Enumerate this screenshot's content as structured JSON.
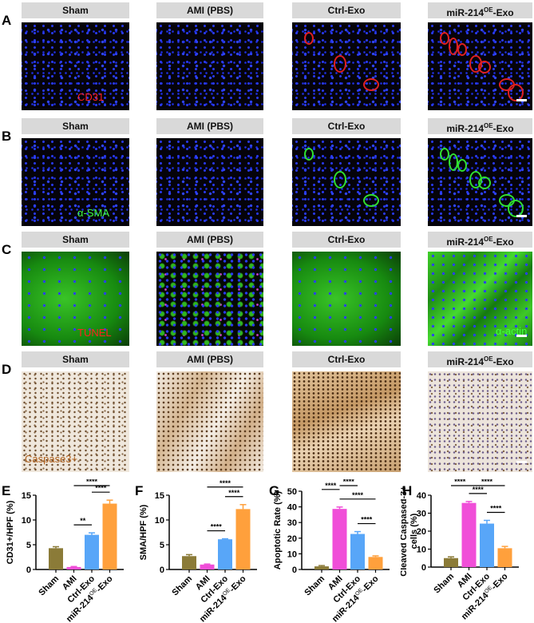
{
  "rows": [
    {
      "letter": "A",
      "label": "CD31",
      "label_color": "#ff2020",
      "style": [
        "fluo-blue",
        "fluo-blue",
        "fluo-blue",
        "fluo-blue"
      ]
    },
    {
      "letter": "B",
      "label": "α-SMA",
      "label_color": "#40ff40",
      "style": [
        "fluo-blue",
        "fluo-blue",
        "fluo-blue",
        "fluo-blue"
      ]
    },
    {
      "letter": "C",
      "label": "TUNEL",
      "label_color": "#ff2020",
      "label2": "α-actin",
      "label2_color": "#40ff40",
      "style": [
        "green-soft",
        "green-dark",
        "green-soft",
        "fluo-green"
      ]
    },
    {
      "letter": "D",
      "label": "Caspase3+",
      "label_color": "#b0601c",
      "style": [
        "ihc",
        "ihc-mid",
        "ihc-dark",
        "ihc-light"
      ]
    }
  ],
  "groups": [
    {
      "main": "Sham",
      "sup": "",
      "suffix": ""
    },
    {
      "main": "AMI (PBS)",
      "sup": "",
      "suffix": ""
    },
    {
      "main": "Ctrl-Exo",
      "sup": "",
      "suffix": ""
    },
    {
      "main": "miR-214",
      "sup": "OE",
      "suffix": "-Exo"
    }
  ],
  "chart_data": [
    {
      "letter": "E",
      "type": "bar",
      "ylabel": "CD31+/HPF (%)",
      "ylim": [
        0,
        15
      ],
      "yticks": [
        0,
        5,
        10,
        15
      ],
      "categories": [
        "Sham",
        "AMI",
        "Ctrl-Exo",
        "miR-214^OE-Exo"
      ],
      "values": [
        4.3,
        0.5,
        7.0,
        13.3
      ],
      "errors": [
        0.3,
        0.1,
        0.4,
        0.7
      ],
      "significance": [
        {
          "from": 1,
          "to": 2,
          "label": "**"
        },
        {
          "from": 2,
          "to": 3,
          "label": "****"
        },
        {
          "from": 1,
          "to": 3,
          "label": "****"
        }
      ]
    },
    {
      "letter": "F",
      "type": "bar",
      "ylabel": "SMA/HPF (%)",
      "ylim": [
        0,
        15
      ],
      "yticks": [
        0,
        5,
        10,
        15
      ],
      "categories": [
        "Sham",
        "AMI",
        "Ctrl-Exo",
        "miR-214^OE-Exo"
      ],
      "values": [
        2.7,
        1.0,
        6.1,
        12.2
      ],
      "errors": [
        0.3,
        0.1,
        0.1,
        0.9
      ],
      "significance": [
        {
          "from": 1,
          "to": 2,
          "label": "****"
        },
        {
          "from": 2,
          "to": 3,
          "label": "****"
        },
        {
          "from": 1,
          "to": 3,
          "label": "****"
        }
      ]
    },
    {
      "letter": "G",
      "type": "bar",
      "ylabel": "Apoptotic Rate (%)",
      "ylim": [
        0,
        50
      ],
      "yticks": [
        0,
        10,
        20,
        30,
        40,
        50
      ],
      "categories": [
        "Sham",
        "AMI",
        "Ctrl-Exo",
        "miR-214^OE-Exo"
      ],
      "values": [
        2.0,
        38.7,
        22.7,
        8.0
      ],
      "errors": [
        0.5,
        1.2,
        1.5,
        0.7
      ],
      "significance": [
        {
          "from": 2,
          "to": 3,
          "label": "****"
        },
        {
          "from": 1,
          "to": 3,
          "label": "****"
        },
        {
          "from": 0,
          "to": 1,
          "label": "****"
        },
        {
          "from": 1,
          "to": 2,
          "label": "****"
        }
      ]
    },
    {
      "letter": "H",
      "type": "bar",
      "ylabel": "Cleaved Caspased-3+ cells (%)",
      "ylabel_lines": [
        "Cleaved Caspased-3+",
        "cells (%)"
      ],
      "ylim": [
        0,
        40
      ],
      "yticks": [
        0,
        10,
        20,
        30,
        40
      ],
      "categories": [
        "Sham",
        "AMI",
        "Ctrl-Exo",
        "miR-214^OE-Exo"
      ],
      "values": [
        5.0,
        35.7,
        24.2,
        10.5
      ],
      "errors": [
        0.7,
        0.8,
        1.8,
        1.0
      ],
      "significance": [
        {
          "from": 2,
          "to": 3,
          "label": "****"
        },
        {
          "from": 1,
          "to": 2,
          "label": "****"
        },
        {
          "from": 0,
          "to": 1,
          "label": "****"
        },
        {
          "from": 1,
          "to": 3,
          "label": "****"
        }
      ]
    }
  ],
  "colors": [
    "#8b7b38",
    "#f04ed8",
    "#58a6f8",
    "#ffa03c"
  ]
}
